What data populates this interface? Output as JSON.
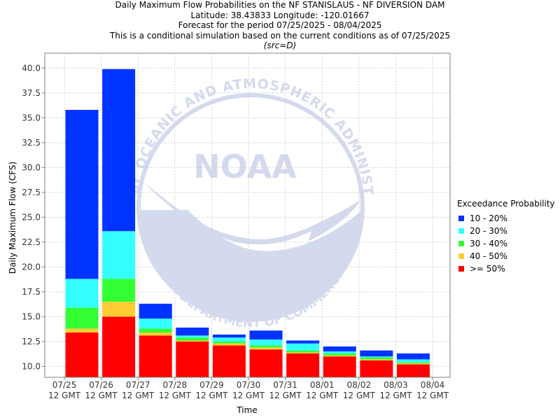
{
  "title_lines": [
    "Daily Maximum Flow Probabilities on the NF STANISLAUS - NF DIVERSION DAM",
    "Latitude: 38.43833 Longitude: -120.01667",
    "Forecast for the period 07/25/2025 - 08/04/2025",
    "This is a conditional simulation based on the current conditions as of 07/25/2025"
  ],
  "source_note": "(src=D)",
  "watermark": {
    "logo_text": "NOAA",
    "ring_text": "NATIONAL OCEANIC AND ATMOSPHERIC ADMINISTRATION",
    "bottom_text": "U.S. DEPARTMENT OF COMMERCE"
  },
  "legend": {
    "title": "Exceedance Probability",
    "items": [
      {
        "label": "10 - 20%",
        "color": "#0033ff"
      },
      {
        "label": "20 - 30%",
        "color": "#33ffff"
      },
      {
        "label": "30 - 40%",
        "color": "#33ff33"
      },
      {
        "label": "40 - 50%",
        "color": "#ffcc33"
      },
      {
        "label": ">= 50%",
        "color": "#ff0000"
      }
    ]
  },
  "chart_data": {
    "type": "bar",
    "stacked": true,
    "title": "Daily Maximum Flow Probabilities on the NF STANISLAUS - NF DIVERSION DAM",
    "xlabel": "Time",
    "ylabel": "Daily Maximum Flow (CFS)",
    "ylim": [
      8.9,
      41.5
    ],
    "yticks": [
      "10.0",
      "12.5",
      "15.0",
      "17.5",
      "20.0",
      "22.5",
      "25.0",
      "27.5",
      "30.0",
      "32.5",
      "35.0",
      "37.5",
      "40.0"
    ],
    "xticks": [
      {
        "date": "07/25",
        "time": "12 GMT"
      },
      {
        "date": "07/26",
        "time": "12 GMT"
      },
      {
        "date": "07/27",
        "time": "12 GMT"
      },
      {
        "date": "07/28",
        "time": "12 GMT"
      },
      {
        "date": "07/29",
        "time": "12 GMT"
      },
      {
        "date": "07/30",
        "time": "12 GMT"
      },
      {
        "date": "07/31",
        "time": "12 GMT"
      },
      {
        "date": "08/01",
        "time": "12 GMT"
      },
      {
        "date": "08/02",
        "time": "12 GMT"
      },
      {
        "date": "08/03",
        "time": "12 GMT"
      },
      {
        "date": "08/04",
        "time": "12 GMT"
      }
    ],
    "grid": true,
    "legend_position": "right",
    "categories": [
      "07/25",
      "07/26",
      "07/27",
      "07/28",
      "07/29",
      "07/30",
      "07/31",
      "08/01",
      "08/02",
      "08/03"
    ],
    "series": [
      {
        "name": ">= 50%",
        "color": "#ff0000",
        "tops": [
          13.4,
          15.0,
          13.1,
          12.5,
          12.1,
          11.7,
          11.3,
          11.0,
          10.6,
          10.2
        ]
      },
      {
        "name": "40 - 50%",
        "color": "#ffcc33",
        "tops": [
          13.8,
          16.5,
          13.4,
          12.6,
          12.3,
          11.9,
          11.4,
          11.1,
          10.7,
          10.3
        ]
      },
      {
        "name": "30 - 40%",
        "color": "#33ff33",
        "tops": [
          15.9,
          18.8,
          13.8,
          12.9,
          12.5,
          12.1,
          11.6,
          11.3,
          10.9,
          10.4
        ]
      },
      {
        "name": "20 - 30%",
        "color": "#33ffff",
        "tops": [
          18.8,
          23.6,
          14.8,
          13.1,
          12.9,
          12.7,
          12.3,
          11.5,
          11.0,
          10.7
        ]
      },
      {
        "name": "10 - 20%",
        "color": "#0033ff",
        "tops": [
          35.8,
          39.9,
          16.3,
          13.9,
          13.2,
          13.6,
          12.6,
          12.0,
          11.6,
          11.3
        ]
      }
    ]
  }
}
